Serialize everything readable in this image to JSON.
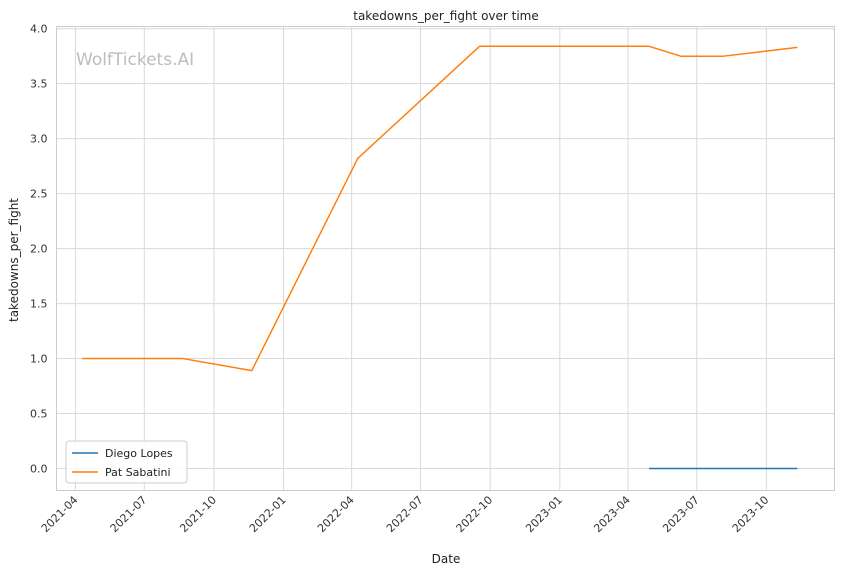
{
  "chart_data": {
    "type": "line",
    "title": "takedowns_per_fight over time",
    "xlabel": "Date",
    "ylabel": "takedowns_per_fight",
    "watermark": "WolfTickets.AI",
    "xlim": [
      "2021-03-07",
      "2023-12-30"
    ],
    "ylim": [
      -0.2,
      4.02
    ],
    "x_ticks": [
      "2021-04",
      "2021-07",
      "2021-10",
      "2022-01",
      "2022-04",
      "2022-07",
      "2022-10",
      "2023-01",
      "2023-04",
      "2023-07",
      "2023-10"
    ],
    "y_ticks": [
      "0.0",
      "0.5",
      "1.0",
      "1.5",
      "2.0",
      "2.5",
      "3.0",
      "3.5",
      "4.0"
    ],
    "grid": true,
    "legend_position": "lower-left",
    "series": [
      {
        "name": "Diego Lopes",
        "color": "#1f77b4",
        "points": [
          {
            "x": "2023-04-29",
            "y": 0.0
          },
          {
            "x": "2023-11-11",
            "y": 0.0
          }
        ]
      },
      {
        "name": "Pat Sabatini",
        "color": "#ff7f0e",
        "points": [
          {
            "x": "2021-04-10",
            "y": 1.0
          },
          {
            "x": "2021-08-21",
            "y": 1.0
          },
          {
            "x": "2021-11-20",
            "y": 0.89
          },
          {
            "x": "2022-04-09",
            "y": 2.82
          },
          {
            "x": "2022-09-17",
            "y": 3.84
          },
          {
            "x": "2023-04-29",
            "y": 3.84
          },
          {
            "x": "2023-06-10",
            "y": 3.75
          },
          {
            "x": "2023-08-05",
            "y": 3.75
          },
          {
            "x": "2023-11-11",
            "y": 3.83
          }
        ]
      }
    ]
  }
}
